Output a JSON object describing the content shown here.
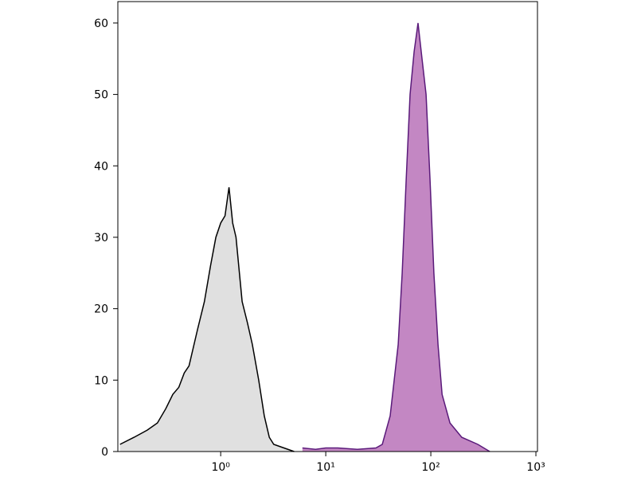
{
  "chart_data": {
    "type": "histogram-overlay",
    "xscale": "log",
    "xlim": [
      0.105,
      1035
    ],
    "xticks": [
      {
        "value": 1,
        "label": "10⁰"
      },
      {
        "value": 10,
        "label": "10¹"
      },
      {
        "value": 100,
        "label": "10²"
      },
      {
        "value": 1000,
        "label": "10³"
      }
    ],
    "ylim": [
      0,
      63
    ],
    "yticks": [
      0,
      10,
      20,
      30,
      40,
      50,
      60
    ],
    "series": [
      {
        "color": "#e0e0e0",
        "line_color": "#000000",
        "x": [
          0.11,
          0.15,
          0.2,
          0.25,
          0.3,
          0.35,
          0.4,
          0.45,
          0.5,
          0.6,
          0.7,
          0.8,
          0.9,
          1.0,
          1.1,
          1.2,
          1.3,
          1.4,
          1.6,
          1.8,
          2.0,
          2.3,
          2.6,
          2.9,
          3.2,
          4,
          5
        ],
        "values": [
          1,
          2,
          3,
          4,
          6,
          8,
          9,
          11,
          12,
          17,
          21,
          26,
          30,
          32,
          33,
          37,
          32,
          30,
          21,
          18,
          15,
          10,
          5,
          2,
          1,
          0.5,
          0
        ]
      },
      {
        "color": "#c387c3",
        "line_color": "#5a1a7a",
        "x": [
          6,
          8,
          10,
          13,
          20,
          30,
          34.5,
          41,
          48.9,
          53.4,
          58.2,
          63.5,
          69.3,
          75.6,
          82.5,
          90.1,
          98.3,
          107,
          117,
          128,
          152,
          197,
          280,
          364
        ],
        "values": [
          0.5,
          0.3,
          0.5,
          0.5,
          0.3,
          0.5,
          1,
          5,
          15,
          25,
          38,
          50,
          56,
          60,
          55,
          50,
          38,
          25,
          15,
          8,
          4,
          2,
          1,
          0
        ]
      }
    ]
  }
}
